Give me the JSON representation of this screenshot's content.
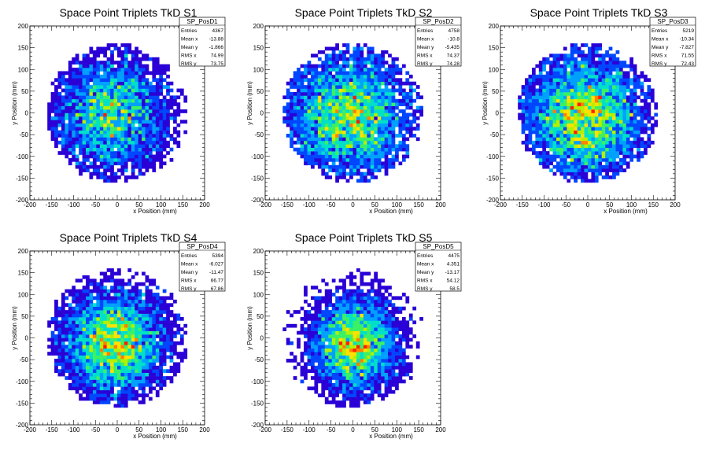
{
  "chart_data": [
    {
      "type": "heatmap",
      "title": "Space Point Triplets TkD S1",
      "xlabel": "x Position (mm)",
      "ylabel": "y Position (mm)",
      "xlim": [
        -200,
        200
      ],
      "ylim": [
        -200,
        200
      ],
      "xticks": [
        -200,
        -150,
        -100,
        -50,
        0,
        50,
        100,
        150,
        200
      ],
      "yticks": [
        -200,
        -150,
        -100,
        -50,
        0,
        50,
        100,
        150,
        200
      ],
      "stats": {
        "name": "SP_PosD1",
        "rows": [
          [
            "Entries",
            "4367"
          ],
          [
            "Mean x",
            "-13.88"
          ],
          [
            "Mean y",
            "-1.866"
          ],
          [
            "RMS x",
            "74.99"
          ],
          [
            "RMS y",
            "73.75"
          ]
        ]
      },
      "distribution": {
        "mean_x": -13.88,
        "mean_y": -1.866,
        "rms_x": 74.99,
        "rms_y": 73.75,
        "radius_mm": 160,
        "bin_mm": 8
      }
    },
    {
      "type": "heatmap",
      "title": "Space Point Triplets TkD S2",
      "xlabel": "x Position (mm)",
      "ylabel": "y Position (mm)",
      "xlim": [
        -200,
        200
      ],
      "ylim": [
        -200,
        200
      ],
      "xticks": [
        -200,
        -150,
        -100,
        -50,
        0,
        50,
        100,
        150,
        200
      ],
      "yticks": [
        -200,
        -150,
        -100,
        -50,
        0,
        50,
        100,
        150,
        200
      ],
      "stats": {
        "name": "SP_PosD2",
        "rows": [
          [
            "Entries",
            "4758"
          ],
          [
            "Mean x",
            "-10.8"
          ],
          [
            "Mean y",
            "-5.435"
          ],
          [
            "RMS x",
            "74.37"
          ],
          [
            "RMS y",
            "74.28"
          ]
        ]
      },
      "distribution": {
        "mean_x": -10.8,
        "mean_y": -5.435,
        "rms_x": 74.37,
        "rms_y": 74.28,
        "radius_mm": 160,
        "bin_mm": 8
      }
    },
    {
      "type": "heatmap",
      "title": "Space Point Triplets TkD S3",
      "xlabel": "x Position (mm)",
      "ylabel": "y Position (mm)",
      "xlim": [
        -200,
        200
      ],
      "ylim": [
        -200,
        200
      ],
      "xticks": [
        -200,
        -150,
        -100,
        -50,
        0,
        50,
        100,
        150,
        200
      ],
      "yticks": [
        -200,
        -150,
        -100,
        -50,
        0,
        50,
        100,
        150,
        200
      ],
      "stats": {
        "name": "SP_PosD3",
        "rows": [
          [
            "Entries",
            "5219"
          ],
          [
            "Mean x",
            "-10.34"
          ],
          [
            "Mean y",
            "-7.827"
          ],
          [
            "RMS x",
            "71.55"
          ],
          [
            "RMS y",
            "72.43"
          ]
        ]
      },
      "distribution": {
        "mean_x": -10.34,
        "mean_y": -7.827,
        "rms_x": 71.55,
        "rms_y": 72.43,
        "radius_mm": 160,
        "bin_mm": 8
      }
    },
    {
      "type": "heatmap",
      "title": "Space Point Triplets TkD S4",
      "xlabel": "x Position (mm)",
      "ylabel": "y Position (mm)",
      "xlim": [
        -200,
        200
      ],
      "ylim": [
        -200,
        200
      ],
      "xticks": [
        -200,
        -150,
        -100,
        -50,
        0,
        50,
        100,
        150,
        200
      ],
      "yticks": [
        -200,
        -150,
        -100,
        -50,
        0,
        50,
        100,
        150,
        200
      ],
      "stats": {
        "name": "SP_PosD4",
        "rows": [
          [
            "Entries",
            "5394"
          ],
          [
            "Mean x",
            "-6.027"
          ],
          [
            "Mean y",
            "-11.47"
          ],
          [
            "RMS x",
            "66.77"
          ],
          [
            "RMS y",
            "67.86"
          ]
        ]
      },
      "distribution": {
        "mean_x": -6.027,
        "mean_y": -11.47,
        "rms_x": 66.77,
        "rms_y": 67.86,
        "radius_mm": 160,
        "bin_mm": 8
      }
    },
    {
      "type": "heatmap",
      "title": "Space Point Triplets TkD S5",
      "xlabel": "x Position (mm)",
      "ylabel": "y Position (mm)",
      "xlim": [
        -200,
        200
      ],
      "ylim": [
        -200,
        200
      ],
      "xticks": [
        -200,
        -150,
        -100,
        -50,
        0,
        50,
        100,
        150,
        200
      ],
      "yticks": [
        -200,
        -150,
        -100,
        -50,
        0,
        50,
        100,
        150,
        200
      ],
      "stats": {
        "name": "SP_PosD5",
        "rows": [
          [
            "Entries",
            "4475"
          ],
          [
            "Mean x",
            "4.351"
          ],
          [
            "Mean y",
            "-13.17"
          ],
          [
            "RMS x",
            "54.12"
          ],
          [
            "RMS y",
            "58.5"
          ]
        ]
      },
      "distribution": {
        "mean_x": 4.351,
        "mean_y": -13.17,
        "rms_x": 54.12,
        "rms_y": 58.5,
        "radius_mm": 160,
        "bin_mm": 8
      }
    }
  ],
  "colors": {
    "background": "#ffffff",
    "frame": "#000000",
    "palette": [
      "#2a00d6",
      "#0046ff",
      "#00a0ff",
      "#00e0c8",
      "#3cf064",
      "#b4f000",
      "#ffe000",
      "#ff8000",
      "#ff1e00"
    ]
  }
}
